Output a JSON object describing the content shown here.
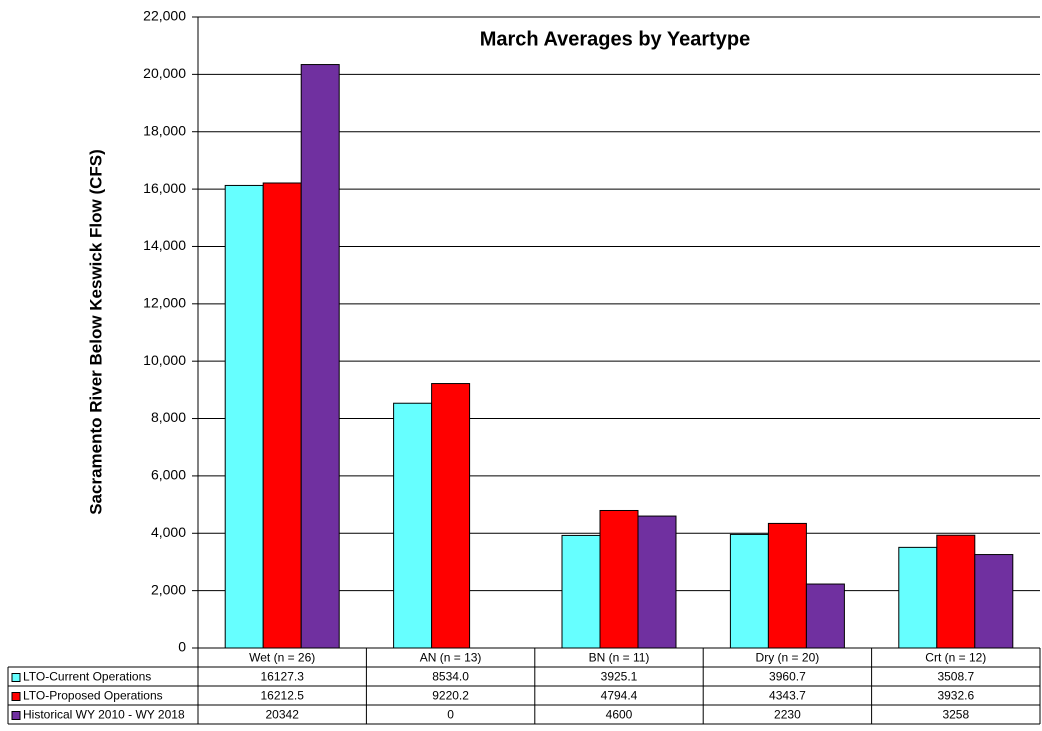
{
  "chart_data": {
    "type": "bar",
    "title": "March Averages by Yeartype",
    "y_label": "Sacramento River Below Keswick Flow (CFS)",
    "categories": [
      "Wet (n = 26)",
      "AN  (n = 13)",
      "BN  (n = 11)",
      "Dry (n = 20)",
      "Crt (n = 12)"
    ],
    "series": [
      {
        "name": "LTO-Current Operations",
        "color": "#66ffff",
        "values": [
          16127.3,
          8534.0,
          3925.1,
          3960.7,
          3508.7
        ],
        "value_labels": [
          "16127.3",
          "8534.0",
          "3925.1",
          "3960.7",
          "3508.7"
        ]
      },
      {
        "name": "LTO-Proposed Operations",
        "color": "#ff0000",
        "values": [
          16212.5,
          9220.2,
          4794.4,
          4343.7,
          3932.6
        ],
        "value_labels": [
          "16212.5",
          "9220.2",
          "4794.4",
          "4343.7",
          "3932.6"
        ]
      },
      {
        "name": "Historical WY 2010 - WY 2018",
        "color": "#7030a0",
        "values": [
          20342,
          0,
          4600,
          2230,
          3258
        ]
      }
    ],
    "ylim": [
      0,
      22000
    ],
    "yticks": [
      0,
      {
        "value": 2000,
        "label": "2,000"
      },
      {
        "value": 4000,
        "label": "4,000"
      },
      {
        "value": 6000,
        "label": "6,000"
      },
      {
        "value": 8000,
        "label": "8,000"
      },
      {
        "value": 10000,
        "label": "10,000"
      },
      {
        "value": 12000,
        "label": "12,000"
      },
      {
        "value": 14000,
        "label": "14,000"
      },
      {
        "value": 16000,
        "label": "16,000"
      },
      {
        "value": 18000,
        "label": "18,000"
      },
      {
        "value": 20000,
        "label": "20,000"
      },
      {
        "value": 22000,
        "label": "22,000"
      }
    ],
    "grid": true,
    "legend": "data-table"
  }
}
